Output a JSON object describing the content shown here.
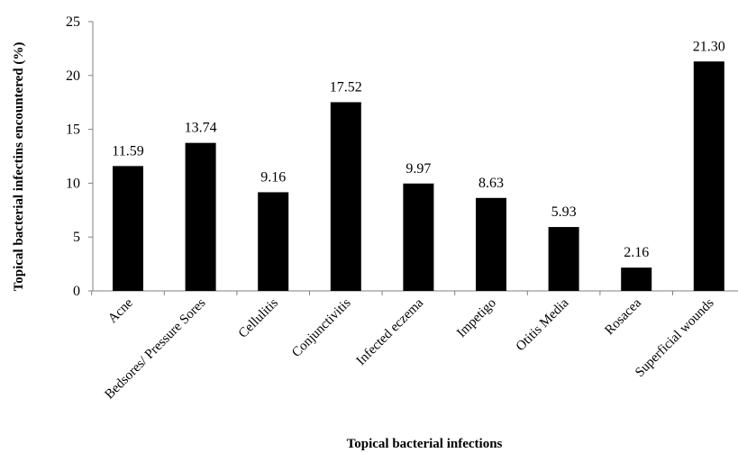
{
  "chart_data": {
    "type": "bar",
    "title": "",
    "xlabel": "Topical bacterial infections",
    "ylabel": "Topical bacterial infectins  encountered (%)",
    "categories": [
      "Acne",
      "Bedsores/ Pressure Sores",
      "Cellulitis",
      "Conjunctivitis",
      "Infected eczema",
      "Impetigo",
      "Otitis Media",
      "Rosacea",
      "Superficial wounds"
    ],
    "values": [
      11.59,
      13.74,
      9.16,
      17.52,
      9.97,
      8.63,
      5.93,
      2.16,
      21.3
    ],
    "value_labels": [
      "11.59",
      "13.74",
      "9.16",
      "17.52",
      "9.97",
      "8.63",
      "5.93",
      "2.16",
      "21.30"
    ],
    "ylim": [
      0,
      25
    ],
    "yticks": [
      "0",
      "5",
      "10",
      "15",
      "20",
      "25"
    ],
    "grid": false,
    "bar_color": "#000000"
  }
}
